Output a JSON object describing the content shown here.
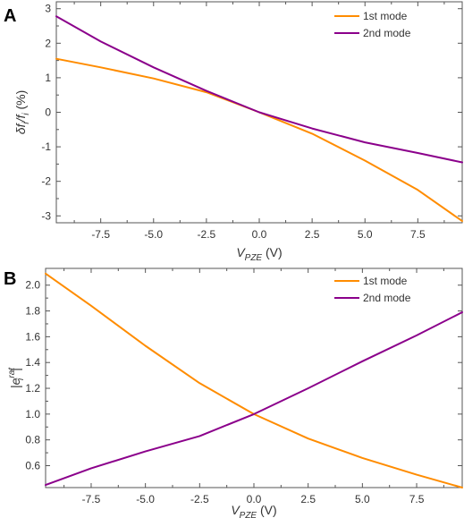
{
  "chart_data": [
    {
      "type": "line",
      "panel_label": "A",
      "xlabel": {
        "main": "V",
        "sub": "PZE",
        "tail": " (V)"
      },
      "ylabel": {
        "main": "δf",
        "sub": "i",
        "mid": "/f",
        "sub2": "i",
        "tail": " (%)"
      },
      "xlim": [
        -9.6,
        9.6
      ],
      "ylim": [
        -3.2,
        3.2
      ],
      "xticks": [
        -7.5,
        -5.0,
        -2.5,
        0.0,
        2.5,
        5.0,
        7.5
      ],
      "xtick_labels": [
        "-7.5",
        "-5.0",
        "-2.5",
        "0.0",
        "2.5",
        "5.0",
        "7.5"
      ],
      "yticks": [
        -3,
        -2,
        -1,
        0,
        1,
        2,
        3
      ],
      "ytick_labels": [
        "-3",
        "-2",
        "-1",
        "0",
        "1",
        "2",
        "3"
      ],
      "legend_position": "top-right",
      "series": [
        {
          "name": "1st mode",
          "color": "#ff8c00",
          "x": [
            -9.6,
            -7.5,
            -5.0,
            -2.5,
            0.0,
            2.5,
            5.0,
            7.5,
            9.6
          ],
          "y": [
            1.55,
            1.3,
            0.98,
            0.58,
            0.0,
            -0.62,
            -1.4,
            -2.25,
            -3.15
          ]
        },
        {
          "name": "2nd mode",
          "color": "#8b008b",
          "x": [
            -9.6,
            -7.5,
            -5.0,
            -2.5,
            0.0,
            2.5,
            5.0,
            7.5,
            9.6
          ],
          "y": [
            2.78,
            2.05,
            1.3,
            0.62,
            0.0,
            -0.47,
            -0.87,
            -1.18,
            -1.45
          ]
        }
      ]
    },
    {
      "type": "line",
      "panel_label": "B",
      "xlabel": {
        "main": "V",
        "sub": "PZE",
        "tail": " (V)"
      },
      "ylabel": {
        "main": "|e",
        "sub": "i",
        "sup": "rat",
        "tail": "|"
      },
      "xlim": [
        -9.6,
        9.6
      ],
      "ylim": [
        0.43,
        2.13
      ],
      "xticks": [
        -7.5,
        -5.0,
        -2.5,
        0.0,
        2.5,
        5.0,
        7.5
      ],
      "xtick_labels": [
        "-7.5",
        "-5.0",
        "-2.5",
        "0.0",
        "2.5",
        "5.0",
        "7.5"
      ],
      "yticks": [
        0.6,
        0.8,
        1.0,
        1.2,
        1.4,
        1.6,
        1.8,
        2.0
      ],
      "ytick_labels": [
        "0.6",
        "0.8",
        "1.0",
        "1.2",
        "1.4",
        "1.6",
        "1.8",
        "2.0"
      ],
      "legend_position": "top-right",
      "series": [
        {
          "name": "1st mode",
          "color": "#ff8c00",
          "x": [
            -9.6,
            -7.5,
            -5.0,
            -2.5,
            0.0,
            2.5,
            5.0,
            7.5,
            9.6
          ],
          "y": [
            2.09,
            1.84,
            1.53,
            1.24,
            1.0,
            0.81,
            0.66,
            0.53,
            0.43
          ]
        },
        {
          "name": "2nd mode",
          "color": "#8b008b",
          "x": [
            -9.6,
            -7.5,
            -5.0,
            -2.5,
            0.0,
            2.5,
            5.0,
            7.5,
            9.6
          ],
          "y": [
            0.45,
            0.58,
            0.71,
            0.83,
            1.0,
            1.2,
            1.41,
            1.61,
            1.79
          ]
        }
      ]
    }
  ]
}
